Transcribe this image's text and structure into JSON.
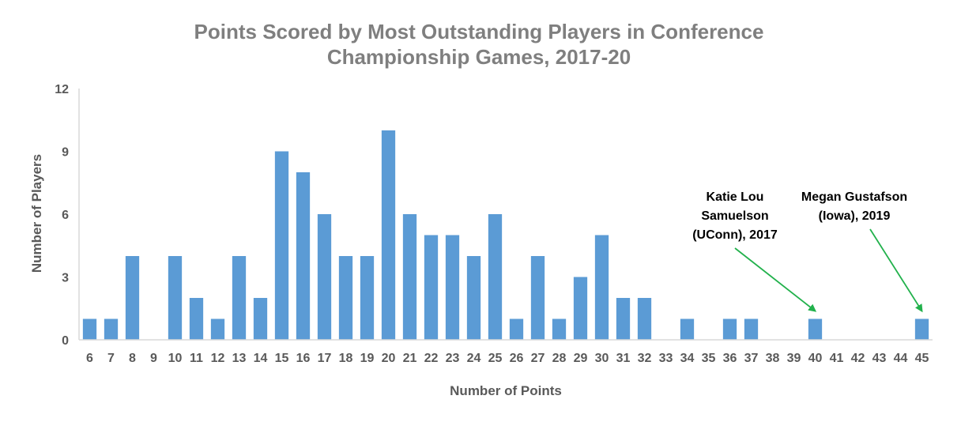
{
  "chart_data": {
    "type": "bar",
    "title_lines": [
      "Points Scored by Most Outstanding Players in Conference",
      "Championship Games, 2017-20"
    ],
    "xlabel": "Number of Points",
    "ylabel": "Number of Players",
    "categories": [
      "6",
      "7",
      "8",
      "9",
      "10",
      "11",
      "12",
      "13",
      "14",
      "15",
      "16",
      "17",
      "18",
      "19",
      "20",
      "21",
      "22",
      "23",
      "24",
      "25",
      "26",
      "27",
      "28",
      "29",
      "30",
      "31",
      "32",
      "33",
      "34",
      "35",
      "36",
      "37",
      "38",
      "39",
      "40",
      "41",
      "42",
      "43",
      "44",
      "45"
    ],
    "values": [
      1,
      1,
      4,
      0,
      4,
      2,
      1,
      4,
      2,
      9,
      8,
      6,
      4,
      4,
      10,
      6,
      5,
      5,
      4,
      6,
      1,
      4,
      1,
      3,
      5,
      2,
      2,
      0,
      1,
      0,
      1,
      1,
      0,
      0,
      1,
      0,
      0,
      0,
      0,
      1
    ],
    "ylim": [
      0,
      12
    ],
    "yticks": [
      0,
      3,
      6,
      9,
      12
    ],
    "grid": false,
    "bar_color": "#5b9bd5",
    "annotations": [
      {
        "lines": [
          "Katie Lou",
          "Samuelson",
          "(UConn), 2017"
        ],
        "target": "40",
        "arrow_color": "#22b14c"
      },
      {
        "lines": [
          "Megan Gustafson",
          "(Iowa), 2019"
        ],
        "target": "45",
        "arrow_color": "#22b14c"
      }
    ]
  }
}
